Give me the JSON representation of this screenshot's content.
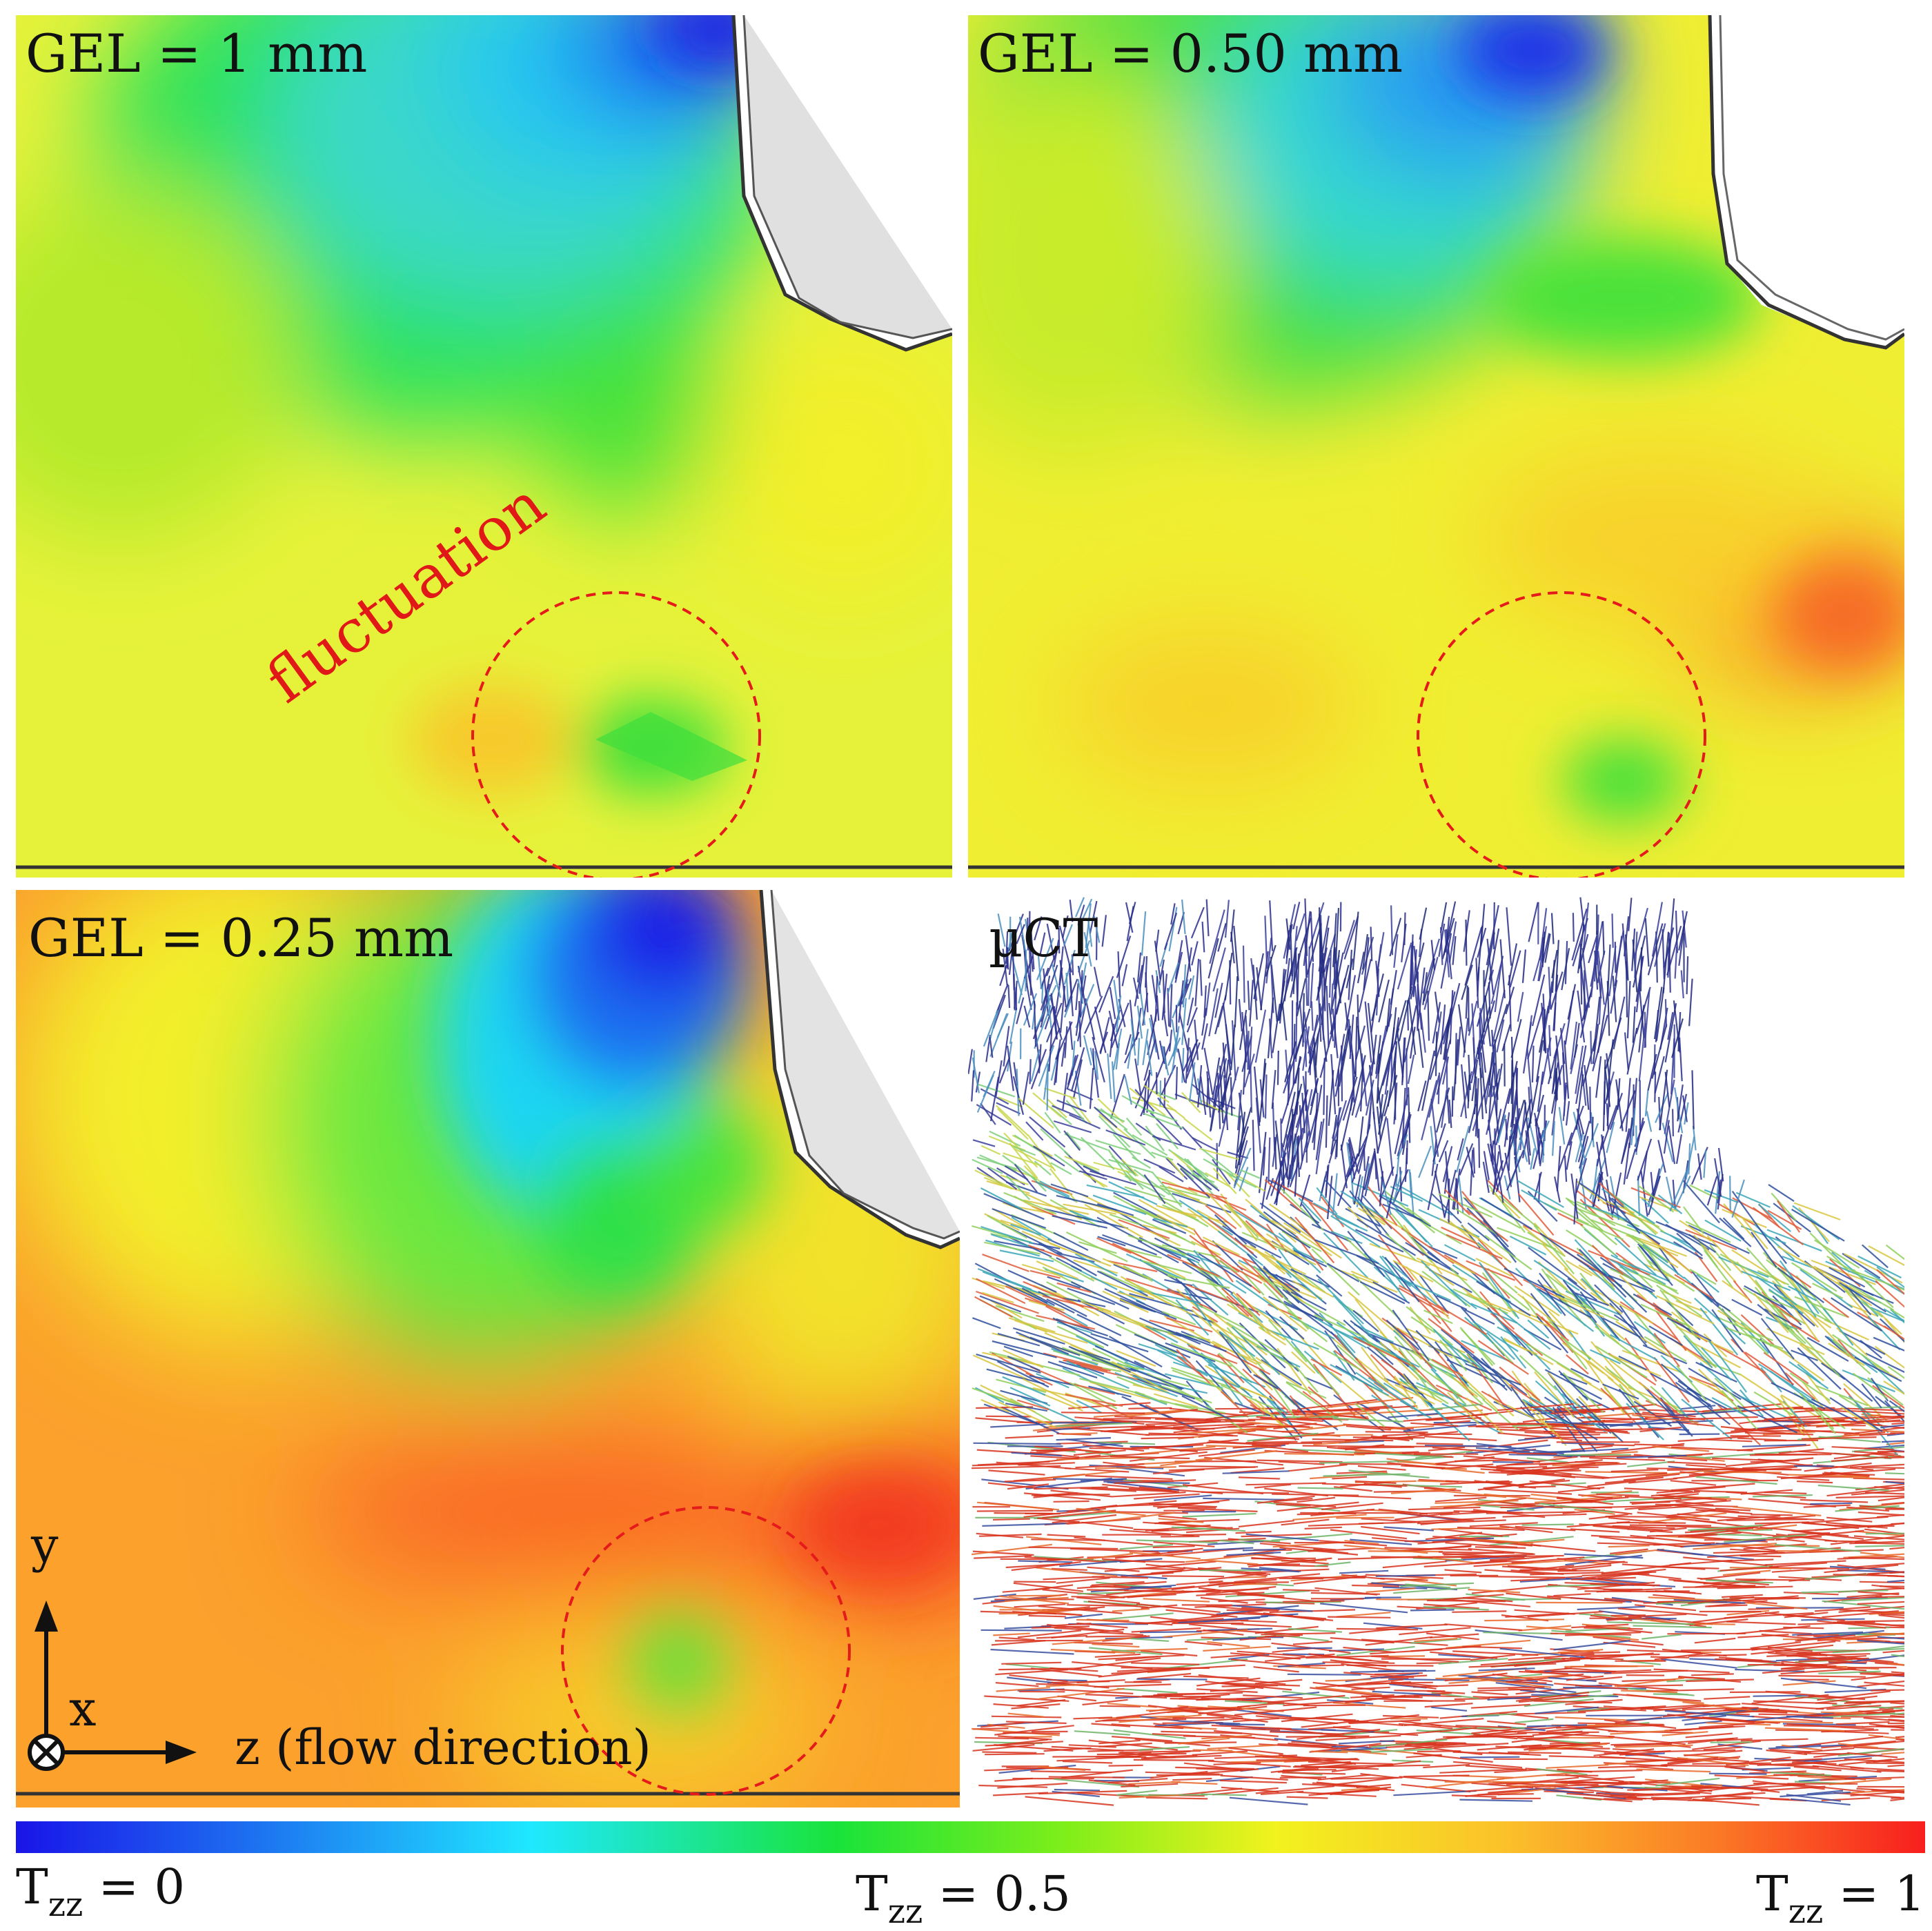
{
  "panels": {
    "top_left": {
      "label": "GEL = 1 mm",
      "annotation": "fluctuation"
    },
    "top_right": {
      "label": "GEL = 0.50 mm"
    },
    "bottom_left": {
      "label": "GEL = 0.25 mm"
    },
    "bottom_right": {
      "label": "µCT"
    }
  },
  "axes": {
    "y": "y",
    "x": "x",
    "z": "z (flow direction)"
  },
  "colorbar": {
    "symbol": "T",
    "subscript": "zz",
    "min_value": "= 0",
    "mid_value": "= 0.5",
    "max_value": "= 1",
    "colors": [
      "#1a14e8",
      "#1fe8ff",
      "#19e33a",
      "#f2f21e",
      "#fb7a26",
      "#f81e1e"
    ]
  }
}
